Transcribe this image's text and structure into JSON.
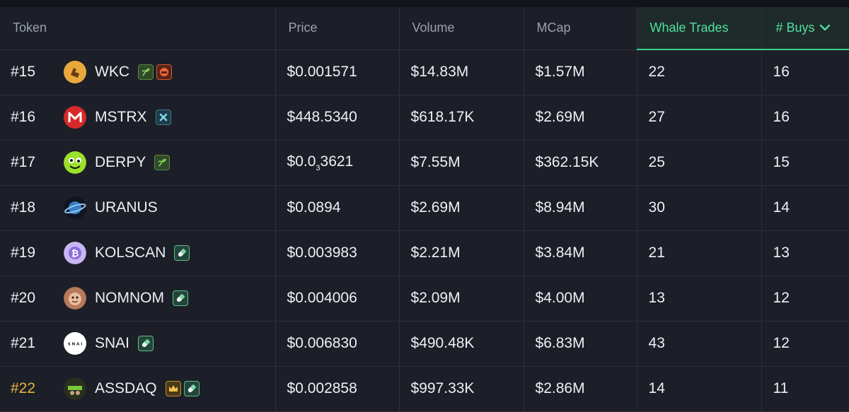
{
  "headers": {
    "token": "Token",
    "price": "Price",
    "volume": "Volume",
    "mcap": "MCap",
    "whale_trades": "Whale Trades",
    "buys": "# Buys"
  },
  "colors": {
    "accent": "#4ee0a0",
    "rank_highlight": "#e8b23a",
    "background": "#1c1f27"
  },
  "rows": [
    {
      "rank": "#15",
      "symbol": "WKC",
      "price": "$0.001571",
      "volume": "$14.83M",
      "mcap": "$1.57M",
      "whale_trades": "22",
      "buys": "16",
      "avatar_icon": "fist-icon",
      "badges": [
        "seedling-icon",
        "red-face-icon"
      ]
    },
    {
      "rank": "#16",
      "symbol": "MSTRX",
      "price": "$448.5340",
      "volume": "$618.17K",
      "mcap": "$2.69M",
      "whale_trades": "27",
      "buys": "16",
      "avatar_icon": "m-logo-icon",
      "badges": [
        "x-icon"
      ]
    },
    {
      "rank": "#17",
      "symbol": "DERPY",
      "price_main": "$0.0",
      "price_zeros": "3",
      "price_rest": "3621",
      "volume": "$7.55M",
      "mcap": "$362.15K",
      "whale_trades": "25",
      "buys": "15",
      "avatar_icon": "derpy-face-icon",
      "badges": [
        "seedling-icon"
      ]
    },
    {
      "rank": "#18",
      "symbol": "URANUS",
      "price": "$0.0894",
      "volume": "$2.69M",
      "mcap": "$8.94M",
      "whale_trades": "30",
      "buys": "14",
      "avatar_icon": "planet-icon",
      "badges": []
    },
    {
      "rank": "#19",
      "symbol": "KOLSCAN",
      "price": "$0.003983",
      "volume": "$2.21M",
      "mcap": "$3.84M",
      "whale_trades": "21",
      "buys": "13",
      "avatar_icon": "kolscan-logo-icon",
      "badges": [
        "pill-icon"
      ]
    },
    {
      "rank": "#20",
      "symbol": "NOMNOM",
      "price": "$0.004006",
      "volume": "$2.09M",
      "mcap": "$4.00M",
      "whale_trades": "13",
      "buys": "12",
      "avatar_icon": "nomnom-avatar-icon",
      "badges": [
        "pill-icon"
      ]
    },
    {
      "rank": "#21",
      "symbol": "SNAI",
      "price": "$0.006830",
      "volume": "$490.48K",
      "mcap": "$6.83M",
      "whale_trades": "43",
      "buys": "12",
      "avatar_icon": "snai-logo-icon",
      "badges": [
        "pill-icon"
      ]
    },
    {
      "rank": "#22",
      "symbol": "ASSDAQ",
      "price": "$0.002858",
      "volume": "$997.33K",
      "mcap": "$2.86M",
      "whale_trades": "14",
      "buys": "11",
      "avatar_icon": "assdaq-avatar-icon",
      "badges": [
        "crown-icon",
        "pill-icon"
      ],
      "highlight_rank": true
    }
  ],
  "snai_logo_text": "S N A I"
}
